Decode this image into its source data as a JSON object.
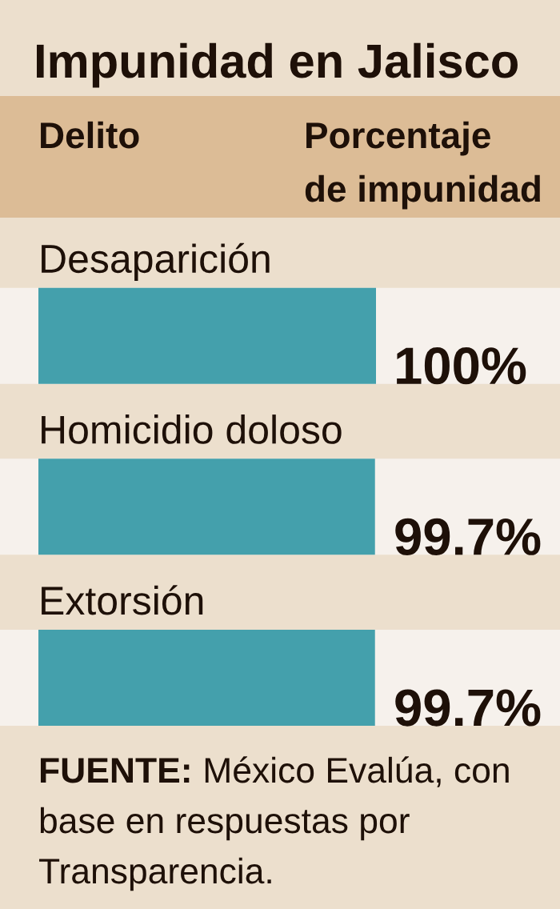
{
  "chart_data": {
    "type": "bar",
    "orientation": "horizontal",
    "title": "Impunidad en Jalisco",
    "ylabel": "Delito",
    "xlabel": "Porcentaje\nde impunidad",
    "categories": [
      "Desaparición",
      "Homicidio doloso",
      "Extorsión"
    ],
    "values": [
      100,
      99.7,
      99.7
    ],
    "color": "#44a0ac",
    "value_labels": [
      "100%",
      "99.7%",
      "99.7%"
    ],
    "tick_labels": "y",
    "annotations": [
      "FUENTE: México Evalúa, con base en respuestas por Transparencia."
    ]
  }
}
